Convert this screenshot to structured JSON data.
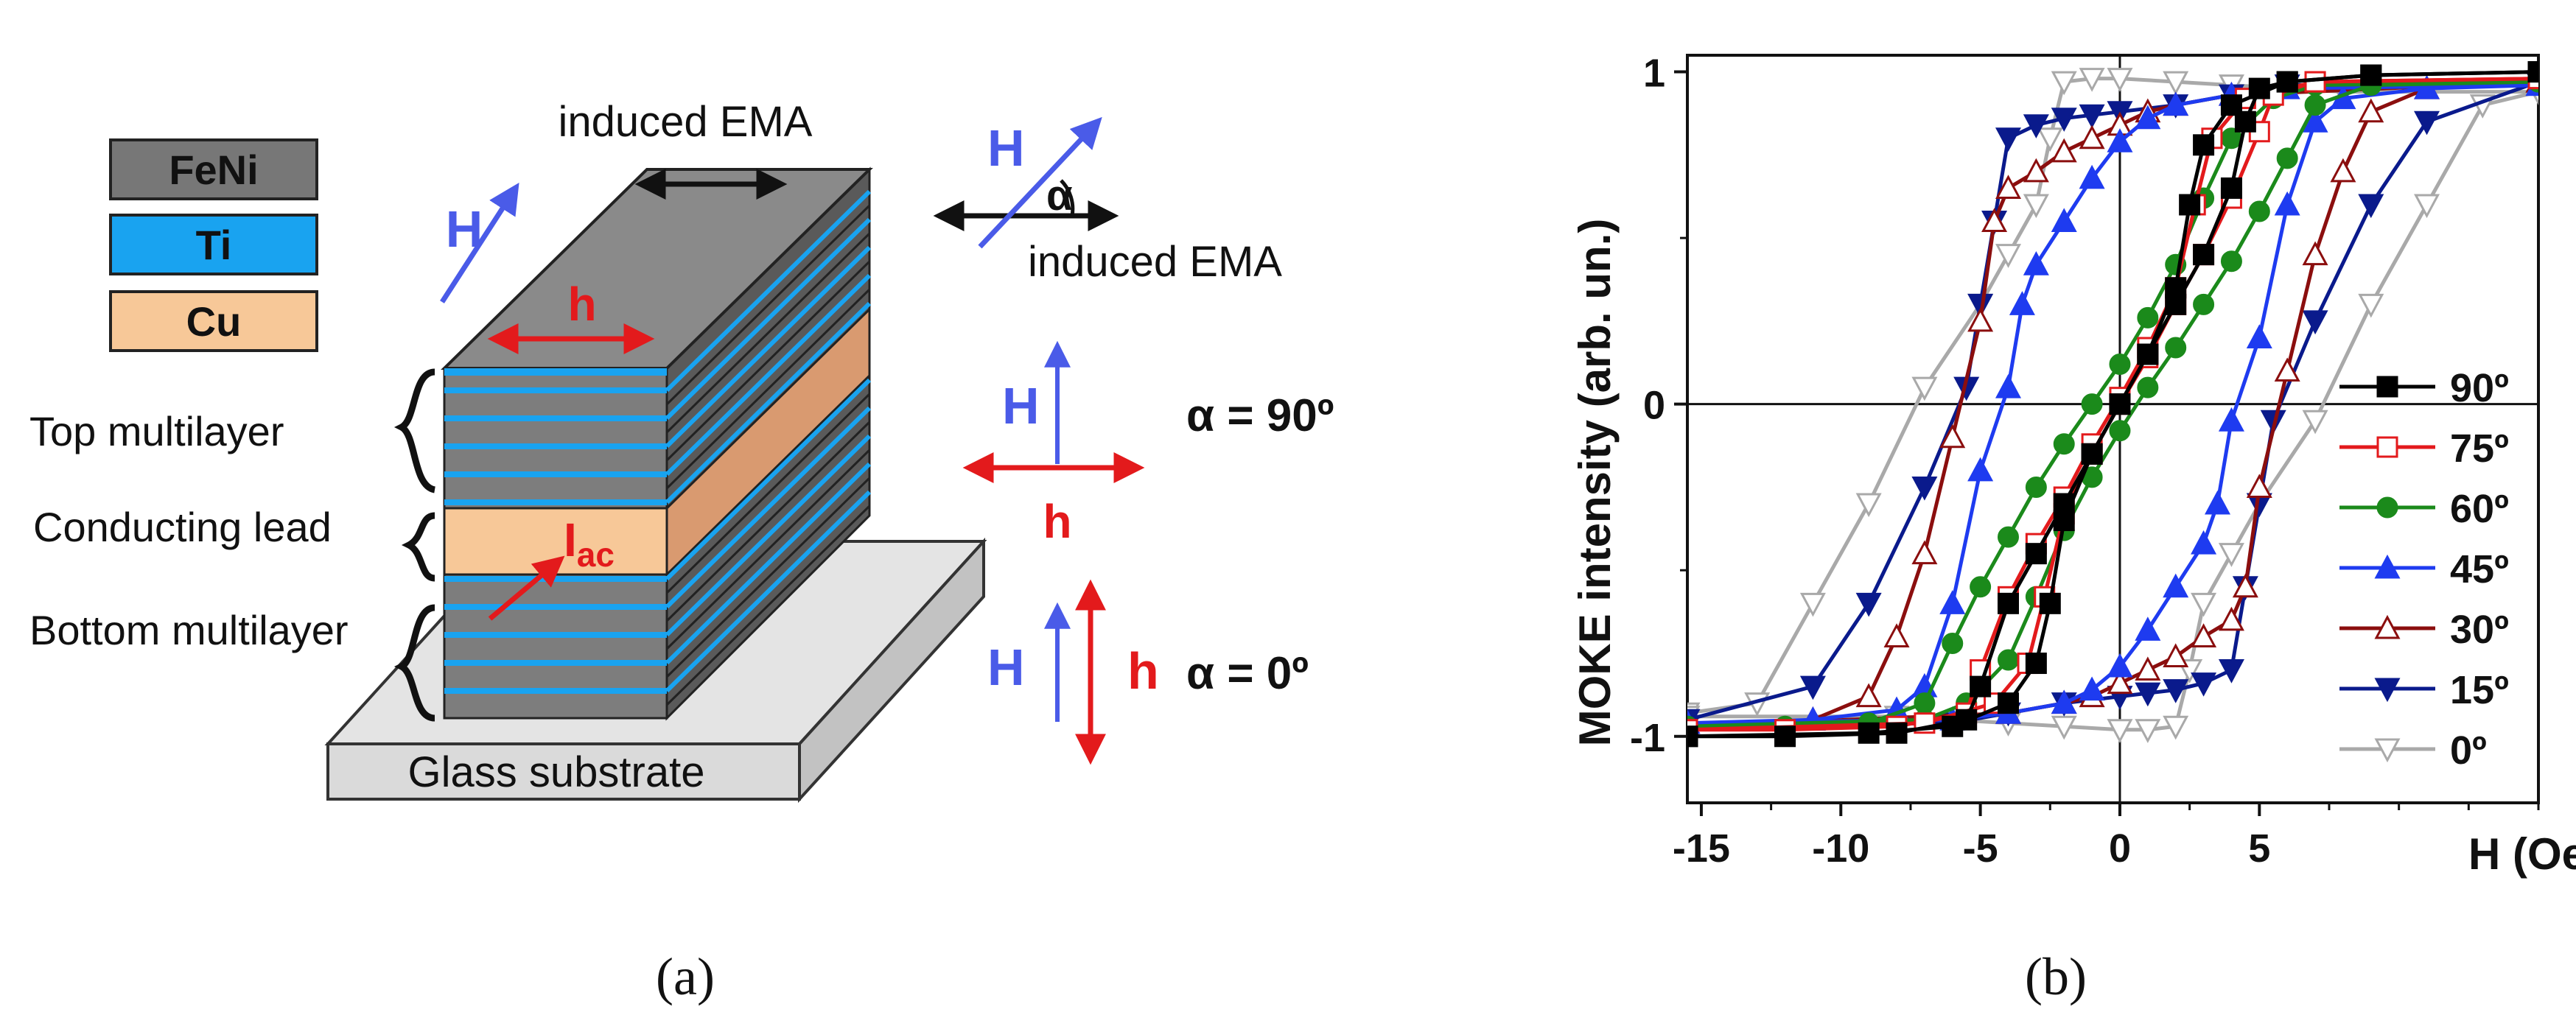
{
  "panel_a": {
    "caption": "(a)",
    "legend": [
      {
        "label": "FeNi",
        "color": "#777777"
      },
      {
        "label": "Ti",
        "color": "#19A3F0"
      },
      {
        "label": "Cu",
        "color": "#F7C898"
      }
    ],
    "labels": {
      "top_multilayer": "Top multilayer",
      "conducting_lead": "Conducting lead",
      "bottom_multilayer": "Bottom multilayer",
      "substrate": "Glass substrate",
      "induced_ema_top": "induced EMA",
      "induced_ema_right": "induced EMA",
      "H": "H",
      "h": "h",
      "alpha": "α",
      "I": "I",
      "I_sub": "ac",
      "alpha_90": "α = 90º",
      "alpha_0": "α = 0º"
    },
    "colors": {
      "H": "#4A5BE8",
      "h": "#E31A1C",
      "ema": "#111111"
    }
  },
  "panel_b": {
    "caption": "(b)"
  },
  "chart_data": {
    "type": "line",
    "title": "",
    "xlabel": "H (Oe)",
    "ylabel": "MOKE intensity (arb. un.)",
    "xlim": [
      -15.5,
      15
    ],
    "ylim": [
      -1.2,
      1.05
    ],
    "xticks": [
      -15,
      -10,
      -5,
      0,
      5
    ],
    "xtick_labels": [
      "-15",
      "-10",
      "-5",
      "0",
      "5"
    ],
    "yticks": [
      -1,
      0,
      1
    ],
    "ytick_labels": [
      "-1",
      "0",
      "1"
    ],
    "grid": false,
    "zero_lines": true,
    "legend_position": "right",
    "series": [
      {
        "name": "90º",
        "color": "#000000",
        "marker": "square",
        "filled": true,
        "ascending": [
          [
            -15.5,
            -1
          ],
          [
            -12,
            -1
          ],
          [
            -8,
            -0.99
          ],
          [
            -5.5,
            -0.95
          ],
          [
            -5,
            -0.85
          ],
          [
            -4,
            -0.6
          ],
          [
            -3,
            -0.45
          ],
          [
            -2,
            -0.3
          ],
          [
            -1,
            -0.15
          ],
          [
            0,
            0
          ],
          [
            1,
            0.15
          ],
          [
            2,
            0.35
          ],
          [
            2.5,
            0.6
          ],
          [
            3,
            0.78
          ],
          [
            4,
            0.9
          ],
          [
            6,
            0.97
          ],
          [
            9,
            0.99
          ],
          [
            15,
            1
          ]
        ],
        "descending": [
          [
            15,
            1
          ],
          [
            9,
            0.99
          ],
          [
            6,
            0.97
          ],
          [
            5,
            0.95
          ],
          [
            4.5,
            0.85
          ],
          [
            4,
            0.65
          ],
          [
            3,
            0.45
          ],
          [
            2,
            0.3
          ],
          [
            1,
            0.15
          ],
          [
            0,
            0
          ],
          [
            -1,
            -0.15
          ],
          [
            -2,
            -0.35
          ],
          [
            -2.5,
            -0.6
          ],
          [
            -3,
            -0.78
          ],
          [
            -4,
            -0.9
          ],
          [
            -6,
            -0.97
          ],
          [
            -9,
            -0.99
          ],
          [
            -15.5,
            -1
          ]
        ]
      },
      {
        "name": "75º",
        "color": "#E31A1C",
        "marker": "square",
        "filled": false,
        "ascending": [
          [
            -15.5,
            -0.98
          ],
          [
            -12,
            -0.98
          ],
          [
            -8,
            -0.97
          ],
          [
            -5.5,
            -0.93
          ],
          [
            -5,
            -0.8
          ],
          [
            -4,
            -0.58
          ],
          [
            -3,
            -0.42
          ],
          [
            -2,
            -0.28
          ],
          [
            -1,
            -0.12
          ],
          [
            0,
            0.02
          ],
          [
            1,
            0.17
          ],
          [
            2,
            0.35
          ],
          [
            2.7,
            0.6
          ],
          [
            3.3,
            0.8
          ],
          [
            4.5,
            0.92
          ],
          [
            7,
            0.97
          ],
          [
            15,
            0.98
          ]
        ],
        "descending": [
          [
            15,
            0.98
          ],
          [
            7,
            0.97
          ],
          [
            5.5,
            0.93
          ],
          [
            5,
            0.82
          ],
          [
            4,
            0.62
          ],
          [
            3,
            0.45
          ],
          [
            2,
            0.3
          ],
          [
            1,
            0.14
          ],
          [
            0,
            0
          ],
          [
            -1,
            -0.15
          ],
          [
            -2,
            -0.33
          ],
          [
            -2.7,
            -0.58
          ],
          [
            -3.3,
            -0.78
          ],
          [
            -4.5,
            -0.9
          ],
          [
            -7,
            -0.96
          ],
          [
            -15.5,
            -0.98
          ]
        ]
      },
      {
        "name": "60º",
        "color": "#1B8A1B",
        "marker": "circle",
        "filled": true,
        "ascending": [
          [
            -15.5,
            -0.97
          ],
          [
            -12,
            -0.97
          ],
          [
            -9,
            -0.96
          ],
          [
            -7,
            -0.9
          ],
          [
            -6,
            -0.72
          ],
          [
            -5,
            -0.55
          ],
          [
            -4,
            -0.4
          ],
          [
            -3,
            -0.25
          ],
          [
            -2,
            -0.12
          ],
          [
            -1,
            0
          ],
          [
            0,
            0.12
          ],
          [
            1,
            0.26
          ],
          [
            2,
            0.42
          ],
          [
            3,
            0.62
          ],
          [
            4,
            0.8
          ],
          [
            5.5,
            0.92
          ],
          [
            7,
            0.96
          ],
          [
            15,
            0.97
          ]
        ],
        "descending": [
          [
            15,
            0.97
          ],
          [
            9,
            0.96
          ],
          [
            7,
            0.9
          ],
          [
            6,
            0.74
          ],
          [
            5,
            0.58
          ],
          [
            4,
            0.43
          ],
          [
            3,
            0.3
          ],
          [
            2,
            0.17
          ],
          [
            1,
            0.05
          ],
          [
            0,
            -0.08
          ],
          [
            -1,
            -0.22
          ],
          [
            -2,
            -0.38
          ],
          [
            -3,
            -0.58
          ],
          [
            -4,
            -0.77
          ],
          [
            -5.5,
            -0.9
          ],
          [
            -7,
            -0.95
          ],
          [
            -15.5,
            -0.97
          ]
        ]
      },
      {
        "name": "45º",
        "color": "#1E3BF0",
        "marker": "triangle-up",
        "filled": true,
        "ascending": [
          [
            -15.5,
            -0.96
          ],
          [
            -11,
            -0.95
          ],
          [
            -8,
            -0.92
          ],
          [
            -7,
            -0.85
          ],
          [
            -6,
            -0.6
          ],
          [
            -5,
            -0.2
          ],
          [
            -4,
            0.05
          ],
          [
            -3.5,
            0.3
          ],
          [
            -3,
            0.42
          ],
          [
            -2,
            0.55
          ],
          [
            -1,
            0.68
          ],
          [
            0,
            0.79
          ],
          [
            1,
            0.86
          ],
          [
            2,
            0.9
          ],
          [
            4,
            0.93
          ],
          [
            6,
            0.95
          ],
          [
            15,
            0.96
          ]
        ],
        "descending": [
          [
            15,
            0.96
          ],
          [
            11,
            0.95
          ],
          [
            8,
            0.92
          ],
          [
            7,
            0.85
          ],
          [
            6,
            0.6
          ],
          [
            5,
            0.2
          ],
          [
            4,
            -0.05
          ],
          [
            3.5,
            -0.3
          ],
          [
            3,
            -0.42
          ],
          [
            2,
            -0.55
          ],
          [
            1,
            -0.68
          ],
          [
            0,
            -0.79
          ],
          [
            -1,
            -0.86
          ],
          [
            -2,
            -0.9
          ],
          [
            -4,
            -0.93
          ],
          [
            -6,
            -0.95
          ],
          [
            -15.5,
            -0.96
          ]
        ]
      },
      {
        "name": "30º",
        "color": "#8B0E0E",
        "marker": "triangle-up",
        "filled": false,
        "ascending": [
          [
            -15.5,
            -0.97
          ],
          [
            -11,
            -0.95
          ],
          [
            -9,
            -0.88
          ],
          [
            -8,
            -0.7
          ],
          [
            -7,
            -0.45
          ],
          [
            -6,
            -0.1
          ],
          [
            -5,
            0.25
          ],
          [
            -4.5,
            0.55
          ],
          [
            -4,
            0.65
          ],
          [
            -3,
            0.7
          ],
          [
            -2,
            0.76
          ],
          [
            -1,
            0.8
          ],
          [
            0,
            0.84
          ],
          [
            1,
            0.88
          ],
          [
            2,
            0.9
          ],
          [
            4,
            0.93
          ],
          [
            15,
            0.97
          ]
        ],
        "descending": [
          [
            15,
            0.97
          ],
          [
            11,
            0.95
          ],
          [
            9,
            0.88
          ],
          [
            8,
            0.7
          ],
          [
            7,
            0.45
          ],
          [
            6,
            0.1
          ],
          [
            5,
            -0.25
          ],
          [
            4.5,
            -0.55
          ],
          [
            4,
            -0.65
          ],
          [
            3,
            -0.7
          ],
          [
            2,
            -0.76
          ],
          [
            1,
            -0.8
          ],
          [
            0,
            -0.84
          ],
          [
            -1,
            -0.88
          ],
          [
            -2,
            -0.9
          ],
          [
            -4,
            -0.93
          ],
          [
            -15.5,
            -0.97
          ]
        ]
      },
      {
        "name": "15º",
        "color": "#0A1A8C",
        "marker": "triangle-down",
        "filled": true,
        "ascending": [
          [
            -15.5,
            -0.95
          ],
          [
            -11,
            -0.85
          ],
          [
            -9,
            -0.6
          ],
          [
            -7,
            -0.25
          ],
          [
            -5.5,
            0.05
          ],
          [
            -5,
            0.3
          ],
          [
            -4.5,
            0.55
          ],
          [
            -4,
            0.8
          ],
          [
            -3,
            0.84
          ],
          [
            -2,
            0.86
          ],
          [
            -1,
            0.87
          ],
          [
            0,
            0.88
          ],
          [
            2,
            0.9
          ],
          [
            4,
            0.93
          ],
          [
            6,
            0.96
          ],
          [
            15,
            0.97
          ]
        ],
        "descending": [
          [
            15,
            0.97
          ],
          [
            11,
            0.85
          ],
          [
            9,
            0.6
          ],
          [
            7,
            0.25
          ],
          [
            5.5,
            -0.05
          ],
          [
            5,
            -0.3
          ],
          [
            4.5,
            -0.55
          ],
          [
            4,
            -0.8
          ],
          [
            3,
            -0.84
          ],
          [
            2,
            -0.86
          ],
          [
            1,
            -0.87
          ],
          [
            0,
            -0.88
          ],
          [
            -2,
            -0.9
          ],
          [
            -4,
            -0.93
          ],
          [
            -6,
            -0.96
          ],
          [
            -15.5,
            -0.97
          ]
        ]
      },
      {
        "name": "0º",
        "color": "#A9A9A9",
        "marker": "triangle-down",
        "filled": false,
        "ascending": [
          [
            -15.5,
            -0.93
          ],
          [
            -13,
            -0.9
          ],
          [
            -11,
            -0.6
          ],
          [
            -9,
            -0.3
          ],
          [
            -7,
            0.05
          ],
          [
            -5,
            0.3
          ],
          [
            -4,
            0.45
          ],
          [
            -3,
            0.6
          ],
          [
            -2.5,
            0.8
          ],
          [
            -2,
            0.97
          ],
          [
            -1,
            0.98
          ],
          [
            0,
            0.98
          ],
          [
            2,
            0.97
          ],
          [
            4,
            0.96
          ],
          [
            8,
            0.94
          ],
          [
            15,
            0.94
          ]
        ],
        "descending": [
          [
            15,
            0.94
          ],
          [
            13,
            0.9
          ],
          [
            11,
            0.6
          ],
          [
            9,
            0.3
          ],
          [
            7,
            -0.05
          ],
          [
            5,
            -0.3
          ],
          [
            4,
            -0.45
          ],
          [
            3,
            -0.6
          ],
          [
            2.5,
            -0.8
          ],
          [
            2,
            -0.97
          ],
          [
            1,
            -0.98
          ],
          [
            0,
            -0.98
          ],
          [
            -2,
            -0.97
          ],
          [
            -4,
            -0.96
          ],
          [
            -8,
            -0.94
          ],
          [
            -15.5,
            -0.94
          ]
        ]
      }
    ]
  }
}
